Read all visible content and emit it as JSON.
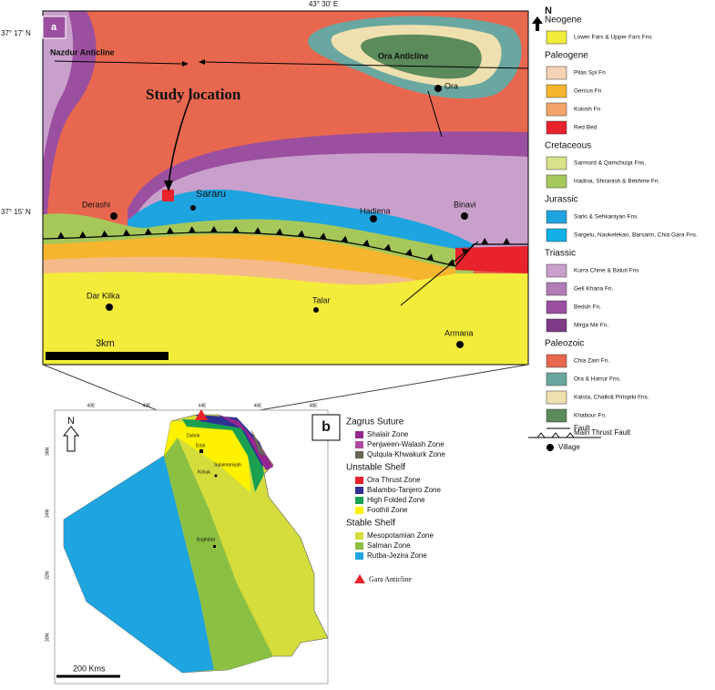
{
  "panel_a": {
    "label": "a",
    "longitude": "43° 30' E",
    "latitudes": [
      "37° 17' N",
      "37° 15' N"
    ],
    "study_location": "Study location",
    "anticlines": [
      "Nazdur Anticline",
      "Ora Anticline"
    ],
    "villages": [
      "Ora",
      "Derashi",
      "Sararu",
      "Hadiena",
      "Binavi",
      "Dar Kilka",
      "Talar",
      "Armana"
    ],
    "scale": "3km"
  },
  "legend_a": {
    "north": "N",
    "groups": [
      {
        "title": "Neogene",
        "items": [
          "Lower Fars & Upper Fars Fns"
        ]
      },
      {
        "title": "Paleogene",
        "items": [
          "Pilas Spi Fn",
          "Gercus Fn",
          "Koiosh Fn",
          "Red Bed"
        ]
      },
      {
        "title": "Cretaceous",
        "items": [
          "Sarmord & Qamchuqa Fns.",
          "Hadina, Shiranish & Bekhme Fn."
        ]
      },
      {
        "title": "Jurassic",
        "items": [
          "Sarki & Sehkaniyan Fns.",
          "Sargelu, Naokelekan, Barsarin, Chia Gara Fns."
        ]
      },
      {
        "title": "Triassic",
        "items": [
          "Kurra Chine & Baluti Fns",
          "Geli Khana Fn.",
          "Beduh Fn.",
          "Mirga Mir Fn."
        ]
      },
      {
        "title": "Paleozoic",
        "items": [
          "Chia Zairi Fn.",
          "Ora & Harrur Fns.",
          "Kaista, Chalki& Pirispiki Fns.",
          "Khabour Fn."
        ]
      }
    ],
    "fault": "Fault",
    "thrust": "Main Thrust Fault",
    "village": "Village"
  },
  "panel_b": {
    "label": "b",
    "north": "N",
    "lon_ticks": [
      "40E",
      "42E",
      "44E",
      "46E",
      "48E"
    ],
    "lat_ticks": [
      "36N",
      "34N",
      "32N",
      "30N"
    ],
    "cities": [
      "Duhok",
      "Erbil",
      "Sulaimaniyah",
      "Kirkuk",
      "Baghdad"
    ],
    "scale": "200 Kms"
  },
  "legend_b": {
    "groups": [
      {
        "title": "Zagrus Suture",
        "items": [
          "Shalair Zone",
          "Penjween-Walash Zone",
          "Qulqula-Khwakurk Zone"
        ]
      },
      {
        "title": "Unstable Shelf",
        "items": [
          "Ora Thrust Zone",
          "Balambo-Tanjero Zone",
          "High Folded Zone",
          "Foothil Zone"
        ]
      },
      {
        "title": "Stable Shelf",
        "items": [
          "Mesopotamian Zone",
          "Salman Zone",
          "Rutba-Jezira Zone"
        ]
      }
    ],
    "gara": "Gara Anticline"
  }
}
